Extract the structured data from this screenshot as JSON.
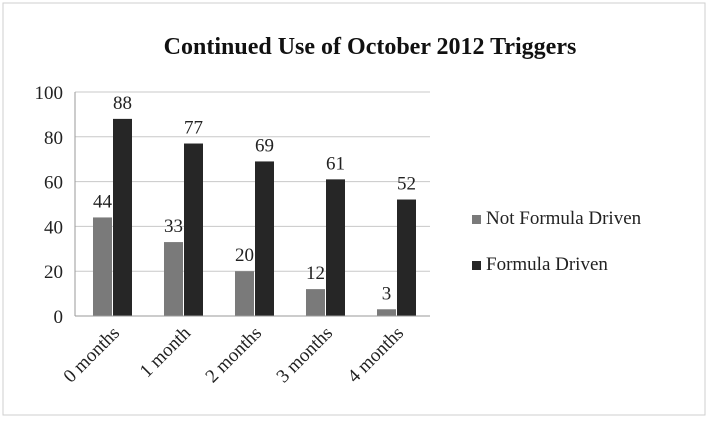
{
  "chart_data": {
    "type": "bar",
    "title": "Continued Use of October 2012 Triggers",
    "xlabel": "",
    "ylabel": "",
    "categories": [
      "0 months",
      "1 month",
      "2 months",
      "3 months",
      "4 months"
    ],
    "series": [
      {
        "name": "Not Formula Driven",
        "values": [
          44,
          33,
          20,
          12,
          3
        ]
      },
      {
        "name": "Formula Driven",
        "values": [
          88,
          77,
          69,
          61,
          52
        ]
      }
    ],
    "ylim": [
      0,
      100
    ],
    "yticks": [
      "0",
      "20",
      "40",
      "60",
      "80",
      "100"
    ],
    "data_labels": [
      [
        "44",
        "33",
        "20",
        "12",
        "3"
      ],
      [
        "88",
        "77",
        "69",
        "61",
        "52"
      ]
    ],
    "grid": true,
    "legend": "right",
    "colors": [
      "#7a7a7a",
      "#262626"
    ]
  }
}
